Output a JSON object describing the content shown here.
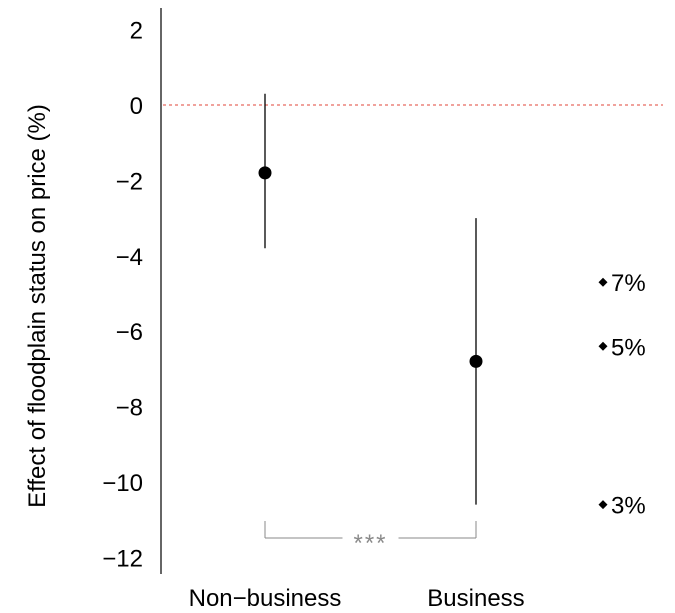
{
  "chart_data": {
    "type": "scatter",
    "ylabel": "Effect of floodplain status on price (%)",
    "xlabel": "",
    "categories": [
      "Non−business",
      "Business"
    ],
    "points": [
      {
        "category": "Non−business",
        "estimate": -1.8,
        "ci_low": -3.8,
        "ci_high": 0.3
      },
      {
        "category": "Business",
        "estimate": -6.8,
        "ci_low": -10.6,
        "ci_high": -3.0
      }
    ],
    "ylim": [
      -12.6,
      2.5
    ],
    "yticks": [
      2,
      0,
      -2,
      -4,
      -6,
      -8,
      -10,
      -12
    ],
    "ytick_labels": [
      "2",
      "0",
      "−2",
      "−4",
      "−6",
      "−8",
      "−10",
      "−12"
    ],
    "reference_line": {
      "y": 0,
      "color": "#e0453a",
      "style": "dashed"
    },
    "significance": {
      "label": "***",
      "between": [
        "Non−business",
        "Business"
      ],
      "color": "#8a8a8a"
    },
    "annotations": [
      {
        "label": "7%",
        "y": -4.7
      },
      {
        "label": "5%",
        "y": -6.4
      },
      {
        "label": "3%",
        "y": -10.6
      }
    ]
  }
}
